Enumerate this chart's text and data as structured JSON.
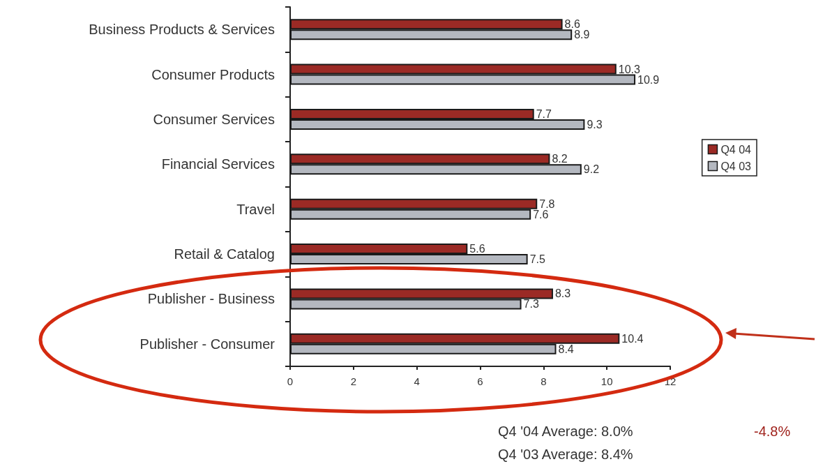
{
  "chart_data": {
    "type": "bar",
    "orientation": "horizontal",
    "categories": [
      "Business Products & Services",
      "Consumer Products",
      "Consumer Services",
      "Financial Services",
      "Travel",
      "Retail & Catalog",
      "Publisher - Business",
      "Publisher - Consumer"
    ],
    "series": [
      {
        "name": "Q4 04",
        "color": "#9b2a25",
        "values": [
          8.6,
          10.3,
          7.7,
          8.2,
          7.8,
          5.6,
          8.3,
          10.4
        ]
      },
      {
        "name": "Q4 03",
        "color": "#b4b8c0",
        "values": [
          8.9,
          10.9,
          9.3,
          9.2,
          7.6,
          7.5,
          7.3,
          8.4
        ]
      }
    ],
    "xlim": [
      0,
      12
    ],
    "xticks": [
      0,
      2,
      4,
      6,
      8,
      10,
      12
    ],
    "data_labels": true,
    "legend": "right",
    "grid": false,
    "annotations": [
      "Q4 '04 Average: 8.0%",
      "Q4 '03 Average: 8.4%",
      "-4.8%"
    ]
  }
}
